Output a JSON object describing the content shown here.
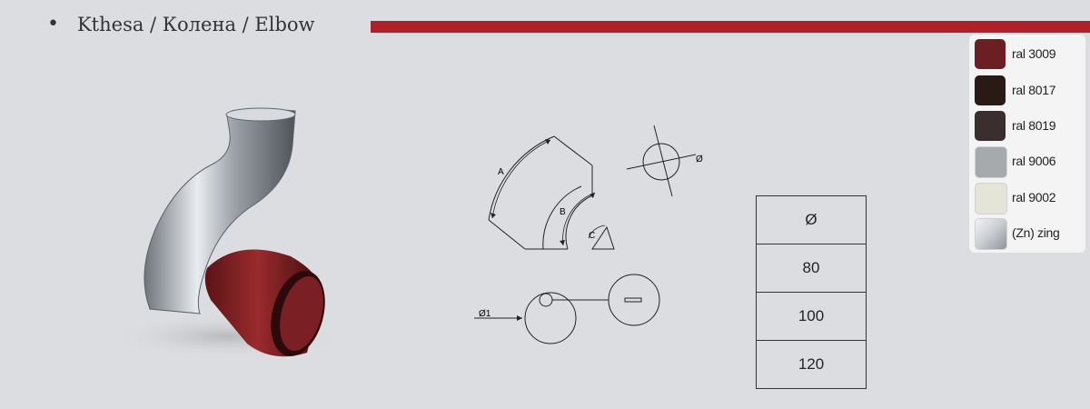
{
  "header": {
    "bullet": "•",
    "title": "Kthesa / Колена / Elbow",
    "accent_color": "#b0202a"
  },
  "swatches": [
    {
      "label": "ral 3009",
      "color": "#6b1f22"
    },
    {
      "label": "ral 8017",
      "color": "#2a1a16"
    },
    {
      "label": "ral 8019",
      "color": "#3a2f2e"
    },
    {
      "label": "ral 9006",
      "color": "#a7aaad"
    },
    {
      "label": "ral 9002",
      "color": "#e4e5d8"
    },
    {
      "label": "(Zn) zing",
      "color": "#c9ccd1"
    }
  ],
  "diagram": {
    "label_a": "A",
    "label_b": "B",
    "label_c": "C",
    "label_diameter": "Ø",
    "label_diameter1": "Ø1"
  },
  "table": {
    "header": "Ø",
    "rows": [
      "80",
      "100",
      "120"
    ]
  }
}
